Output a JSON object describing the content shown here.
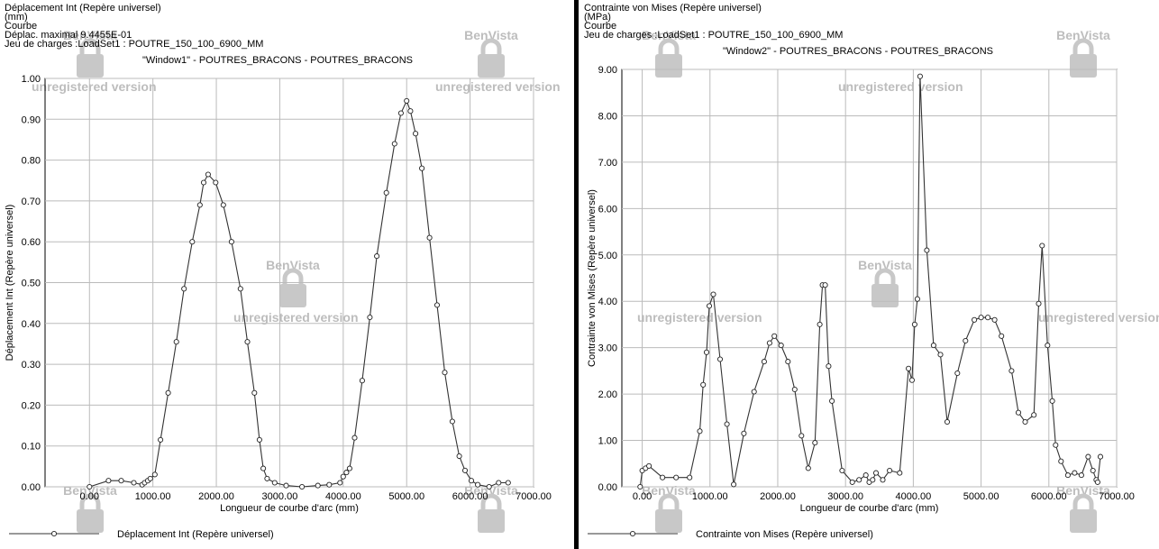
{
  "panels": [
    {
      "header": [
        "Déplacement Int (Repère universel)",
        "(mm)",
        "Courbe",
        "Déplac. maximal  9.4455E-01",
        "Jeu de charges :LoadSet1 :   POUTRE_150_100_6900_MM"
      ],
      "window_title": "\"Window1\" - POUTRES_BRACONS - POUTRES_BRACONS",
      "legend": "Déplacement Int (Repère universel)"
    },
    {
      "header": [
        "Contrainte von Mises (Repère universel)",
        "(MPa)",
        "Courbe",
        "Jeu de charges :LoadSet1 :   POUTRE_150_100_6900_MM"
      ],
      "window_title": "\"Window2\" - POUTRES_BRACONS - POUTRES_BRACONS",
      "legend": "Contrainte von Mises (Repère universel)"
    }
  ],
  "watermark": {
    "brand": "BenVista",
    "text": "unregistered version"
  },
  "chart_data": [
    {
      "type": "line",
      "xlabel": "Longueur de courbe d'arc (mm)",
      "ylabel": "Déplacement Int (Repère universel)",
      "xlim": [
        -700,
        7000
      ],
      "ylim": [
        0,
        1.0
      ],
      "x_ticks": [
        "0.00",
        "1000.00",
        "2000.00",
        "3000.00",
        "4000.00",
        "5000.00",
        "6000.00",
        "7000.00"
      ],
      "y_ticks": [
        "0.00",
        "0.10",
        "0.20",
        "0.30",
        "0.40",
        "0.50",
        "0.60",
        "0.70",
        "0.80",
        "0.90",
        "1.00"
      ],
      "grid": true,
      "series": [
        {
          "name": "Déplacement Int (Repère universel)",
          "x": [
            0,
            300,
            500,
            700,
            830,
            870,
            920,
            960,
            1030,
            1120,
            1240,
            1370,
            1490,
            1620,
            1740,
            1800,
            1870,
            1990,
            2110,
            2240,
            2380,
            2490,
            2600,
            2680,
            2740,
            2800,
            2920,
            3100,
            3350,
            3600,
            3780,
            3950,
            4000,
            4050,
            4100,
            4180,
            4300,
            4420,
            4530,
            4680,
            4810,
            4910,
            5000,
            5060,
            5140,
            5240,
            5360,
            5480,
            5600,
            5720,
            5830,
            5920,
            6020,
            6120,
            6300,
            6450,
            6600
          ],
          "values": [
            0.0,
            0.015,
            0.015,
            0.01,
            0.005,
            0.01,
            0.015,
            0.02,
            0.03,
            0.115,
            0.23,
            0.355,
            0.485,
            0.6,
            0.69,
            0.745,
            0.765,
            0.745,
            0.69,
            0.6,
            0.485,
            0.355,
            0.23,
            0.115,
            0.045,
            0.02,
            0.01,
            0.003,
            0.0,
            0.003,
            0.005,
            0.01,
            0.025,
            0.035,
            0.045,
            0.12,
            0.26,
            0.415,
            0.565,
            0.72,
            0.84,
            0.915,
            0.945,
            0.92,
            0.865,
            0.78,
            0.61,
            0.445,
            0.28,
            0.16,
            0.075,
            0.04,
            0.015,
            0.005,
            0.0,
            0.01,
            0.01
          ]
        }
      ]
    },
    {
      "type": "line",
      "xlabel": "Longueur de courbe d'arc (mm)",
      "ylabel": "Contrainte von Mises (Repère universel)",
      "xlim": [
        -300,
        7000
      ],
      "ylim": [
        0,
        9.0
      ],
      "x_ticks": [
        "0.00",
        "1000.00",
        "2000.00",
        "3000.00",
        "4000.00",
        "5000.00",
        "6000.00",
        "7000.00"
      ],
      "y_ticks": [
        "0.00",
        "1.00",
        "2.00",
        "3.00",
        "4.00",
        "5.00",
        "6.00",
        "7.00",
        "8.00",
        "9.00"
      ],
      "grid": true,
      "series": [
        {
          "name": "Contrainte von Mises (Repère universel)",
          "x": [
            -30,
            0,
            50,
            100,
            300,
            500,
            700,
            850,
            900,
            950,
            990,
            1050,
            1150,
            1250,
            1350,
            1500,
            1650,
            1800,
            1880,
            1950,
            2050,
            2150,
            2250,
            2350,
            2450,
            2550,
            2620,
            2660,
            2700,
            2750,
            2800,
            2950,
            3100,
            3200,
            3300,
            3350,
            3400,
            3450,
            3550,
            3650,
            3800,
            3930,
            3980,
            4020,
            4060,
            4100,
            4200,
            4300,
            4400,
            4500,
            4650,
            4770,
            4900,
            5000,
            5100,
            5200,
            5300,
            5450,
            5550,
            5650,
            5780,
            5850,
            5900,
            5980,
            6050,
            6100,
            6180,
            6280,
            6380,
            6480,
            6580,
            6650,
            6700,
            6720,
            6760
          ],
          "values": [
            0.0,
            0.35,
            0.4,
            0.45,
            0.2,
            0.2,
            0.2,
            1.2,
            2.2,
            2.9,
            3.9,
            4.15,
            2.75,
            1.35,
            0.05,
            1.15,
            2.05,
            2.7,
            3.1,
            3.25,
            3.05,
            2.7,
            2.1,
            1.1,
            0.4,
            0.95,
            3.5,
            4.35,
            4.35,
            2.6,
            1.85,
            0.35,
            0.1,
            0.15,
            0.25,
            0.1,
            0.15,
            0.3,
            0.15,
            0.35,
            0.3,
            2.55,
            2.3,
            3.5,
            4.05,
            8.85,
            5.1,
            3.05,
            2.85,
            1.4,
            2.45,
            3.15,
            3.6,
            3.65,
            3.65,
            3.6,
            3.25,
            2.5,
            1.6,
            1.4,
            1.55,
            3.95,
            5.2,
            3.05,
            1.85,
            0.9,
            0.55,
            0.25,
            0.3,
            0.25,
            0.65,
            0.35,
            0.15,
            0.1,
            0.65
          ]
        }
      ]
    }
  ]
}
